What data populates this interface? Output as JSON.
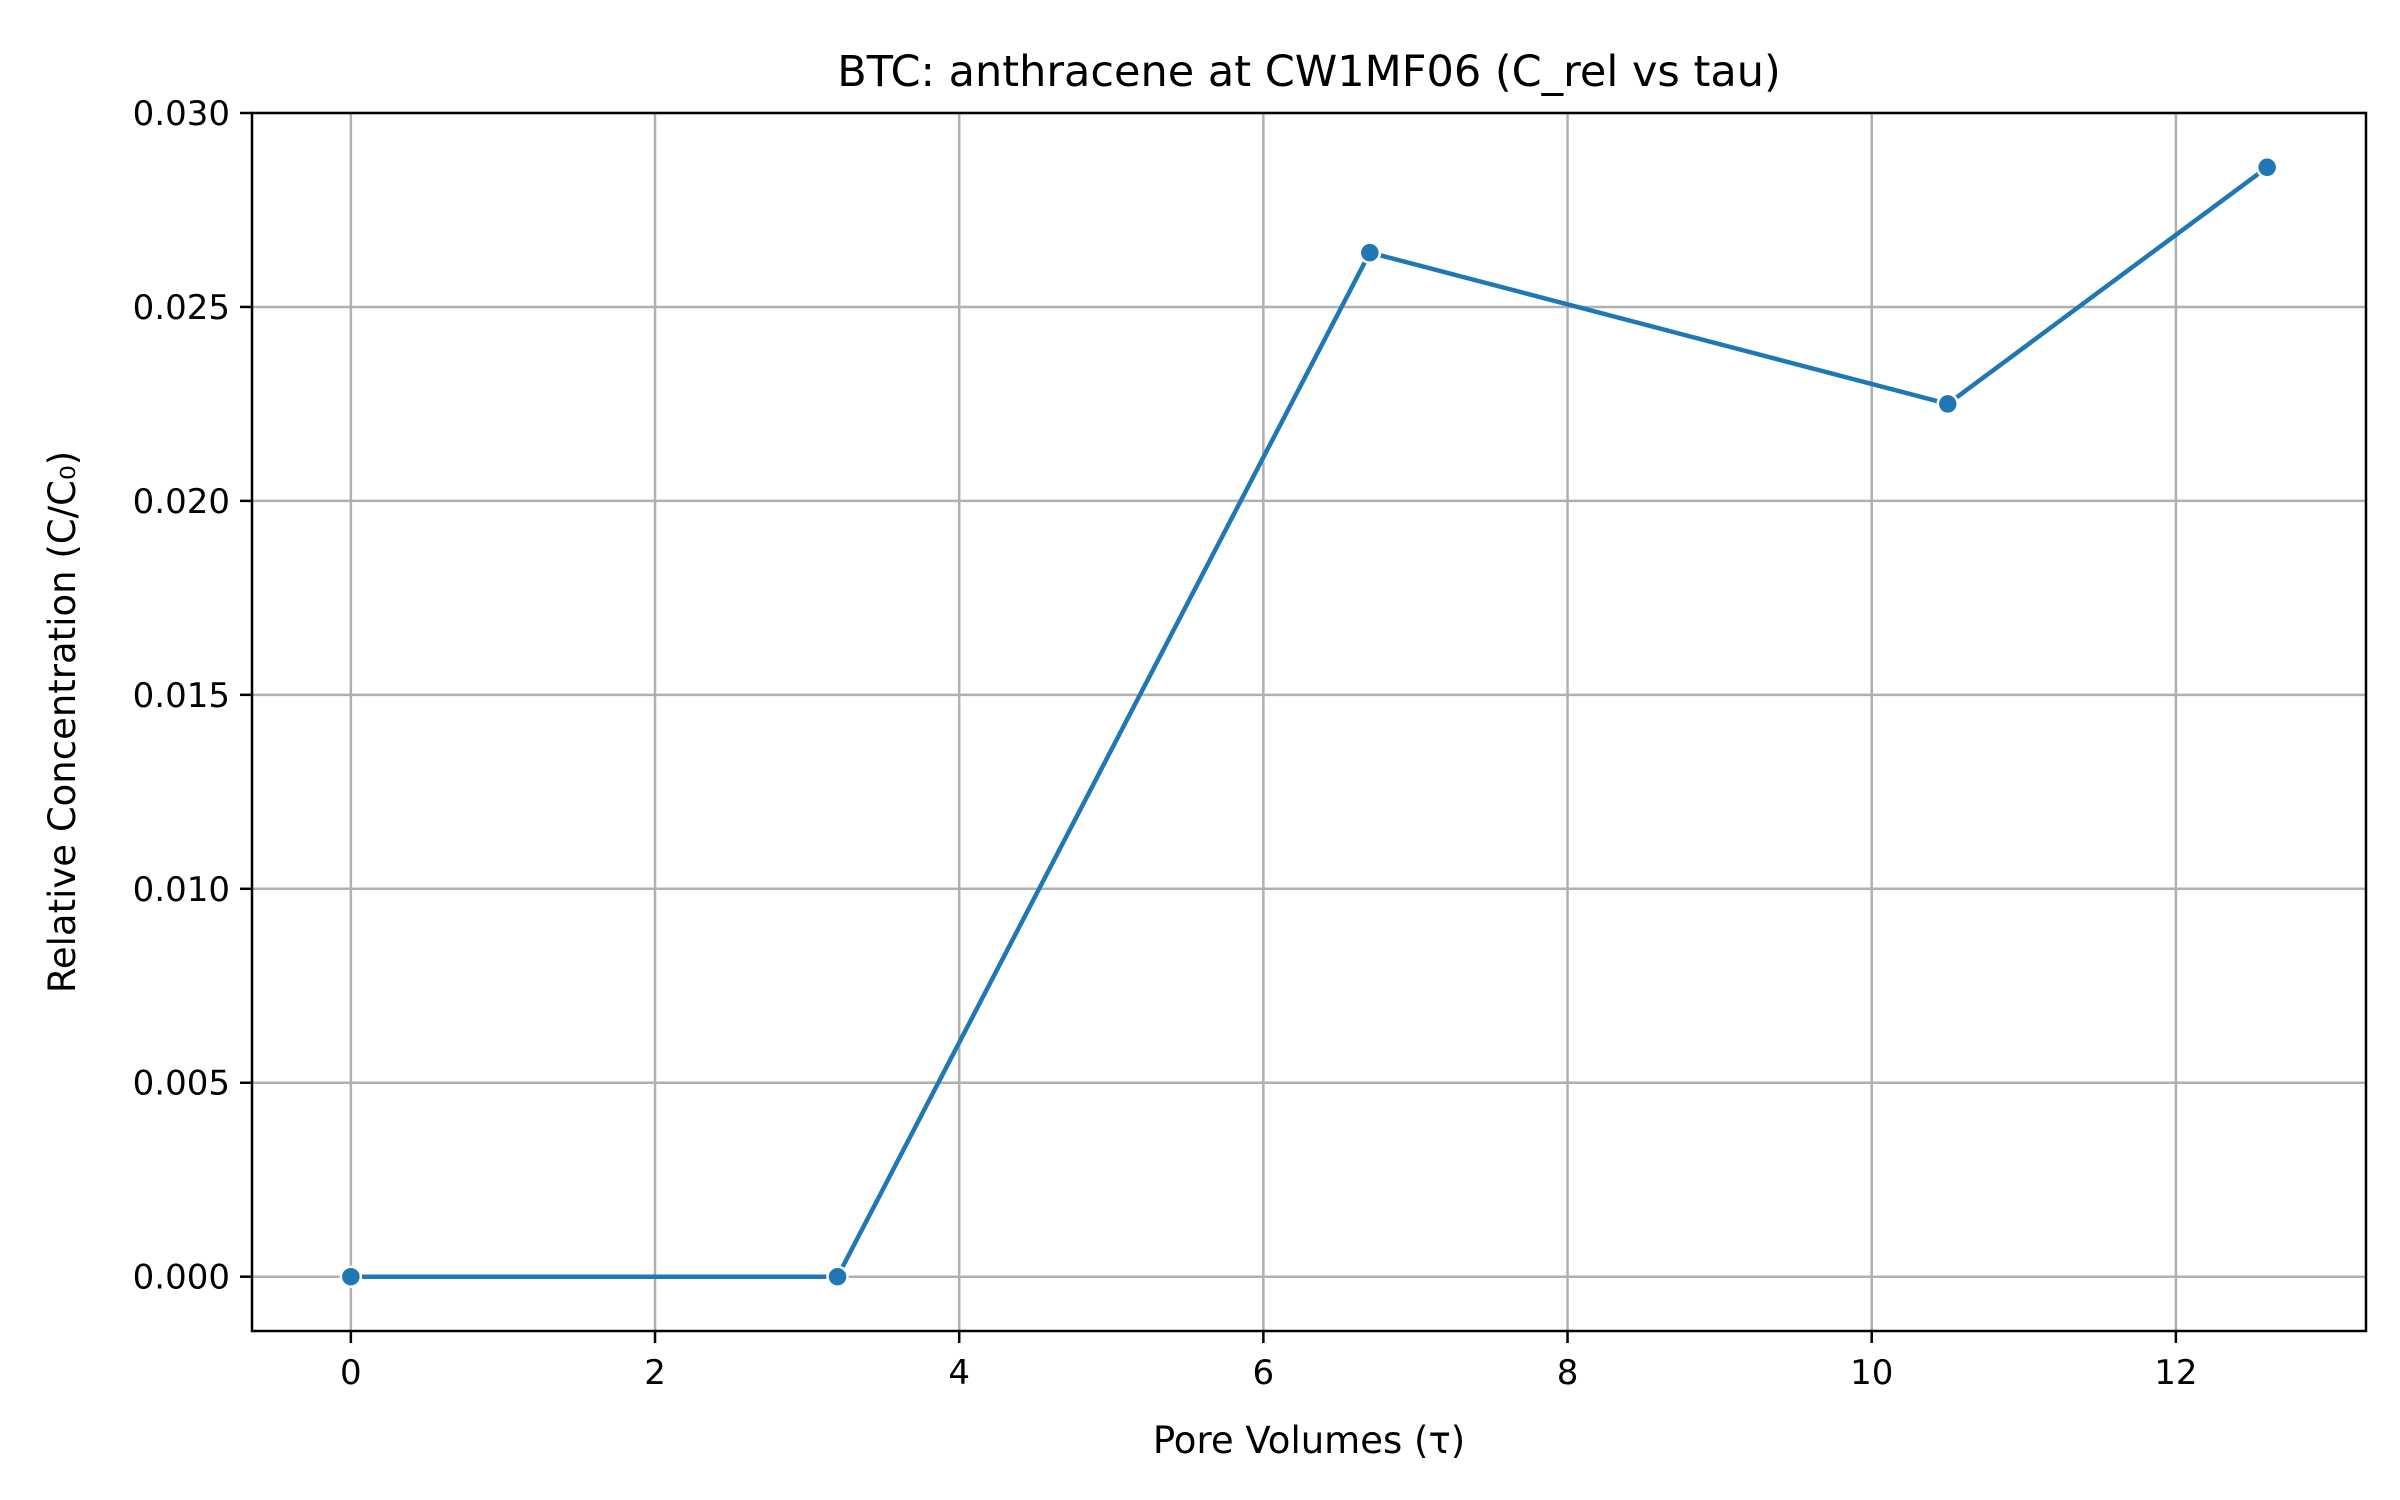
{
  "chart_data": {
    "type": "line",
    "title": "BTC: anthracene at CW1MF06 (C_rel vs tau)",
    "xlabel": "Pore Volumes (τ)",
    "ylabel": "Relative Concentration (C/C₀)",
    "xlim": [
      -0.65,
      13.25
    ],
    "ylim": [
      -0.0014,
      0.03
    ],
    "xticks": [
      0,
      2,
      4,
      6,
      8,
      10,
      12
    ],
    "xtick_labels": [
      "0",
      "2",
      "4",
      "6",
      "8",
      "10",
      "12"
    ],
    "yticks": [
      0.0,
      0.005,
      0.01,
      0.015,
      0.02,
      0.025,
      0.03
    ],
    "ytick_labels": [
      "0.000",
      "0.005",
      "0.010",
      "0.015",
      "0.020",
      "0.025",
      "0.030"
    ],
    "grid": true,
    "series": [
      {
        "color": "#1f77b4",
        "x": [
          0.0,
          3.2,
          6.7,
          10.5,
          12.6
        ],
        "y": [
          0.0,
          0.0,
          0.0264,
          0.0225,
          0.0286
        ]
      }
    ]
  }
}
